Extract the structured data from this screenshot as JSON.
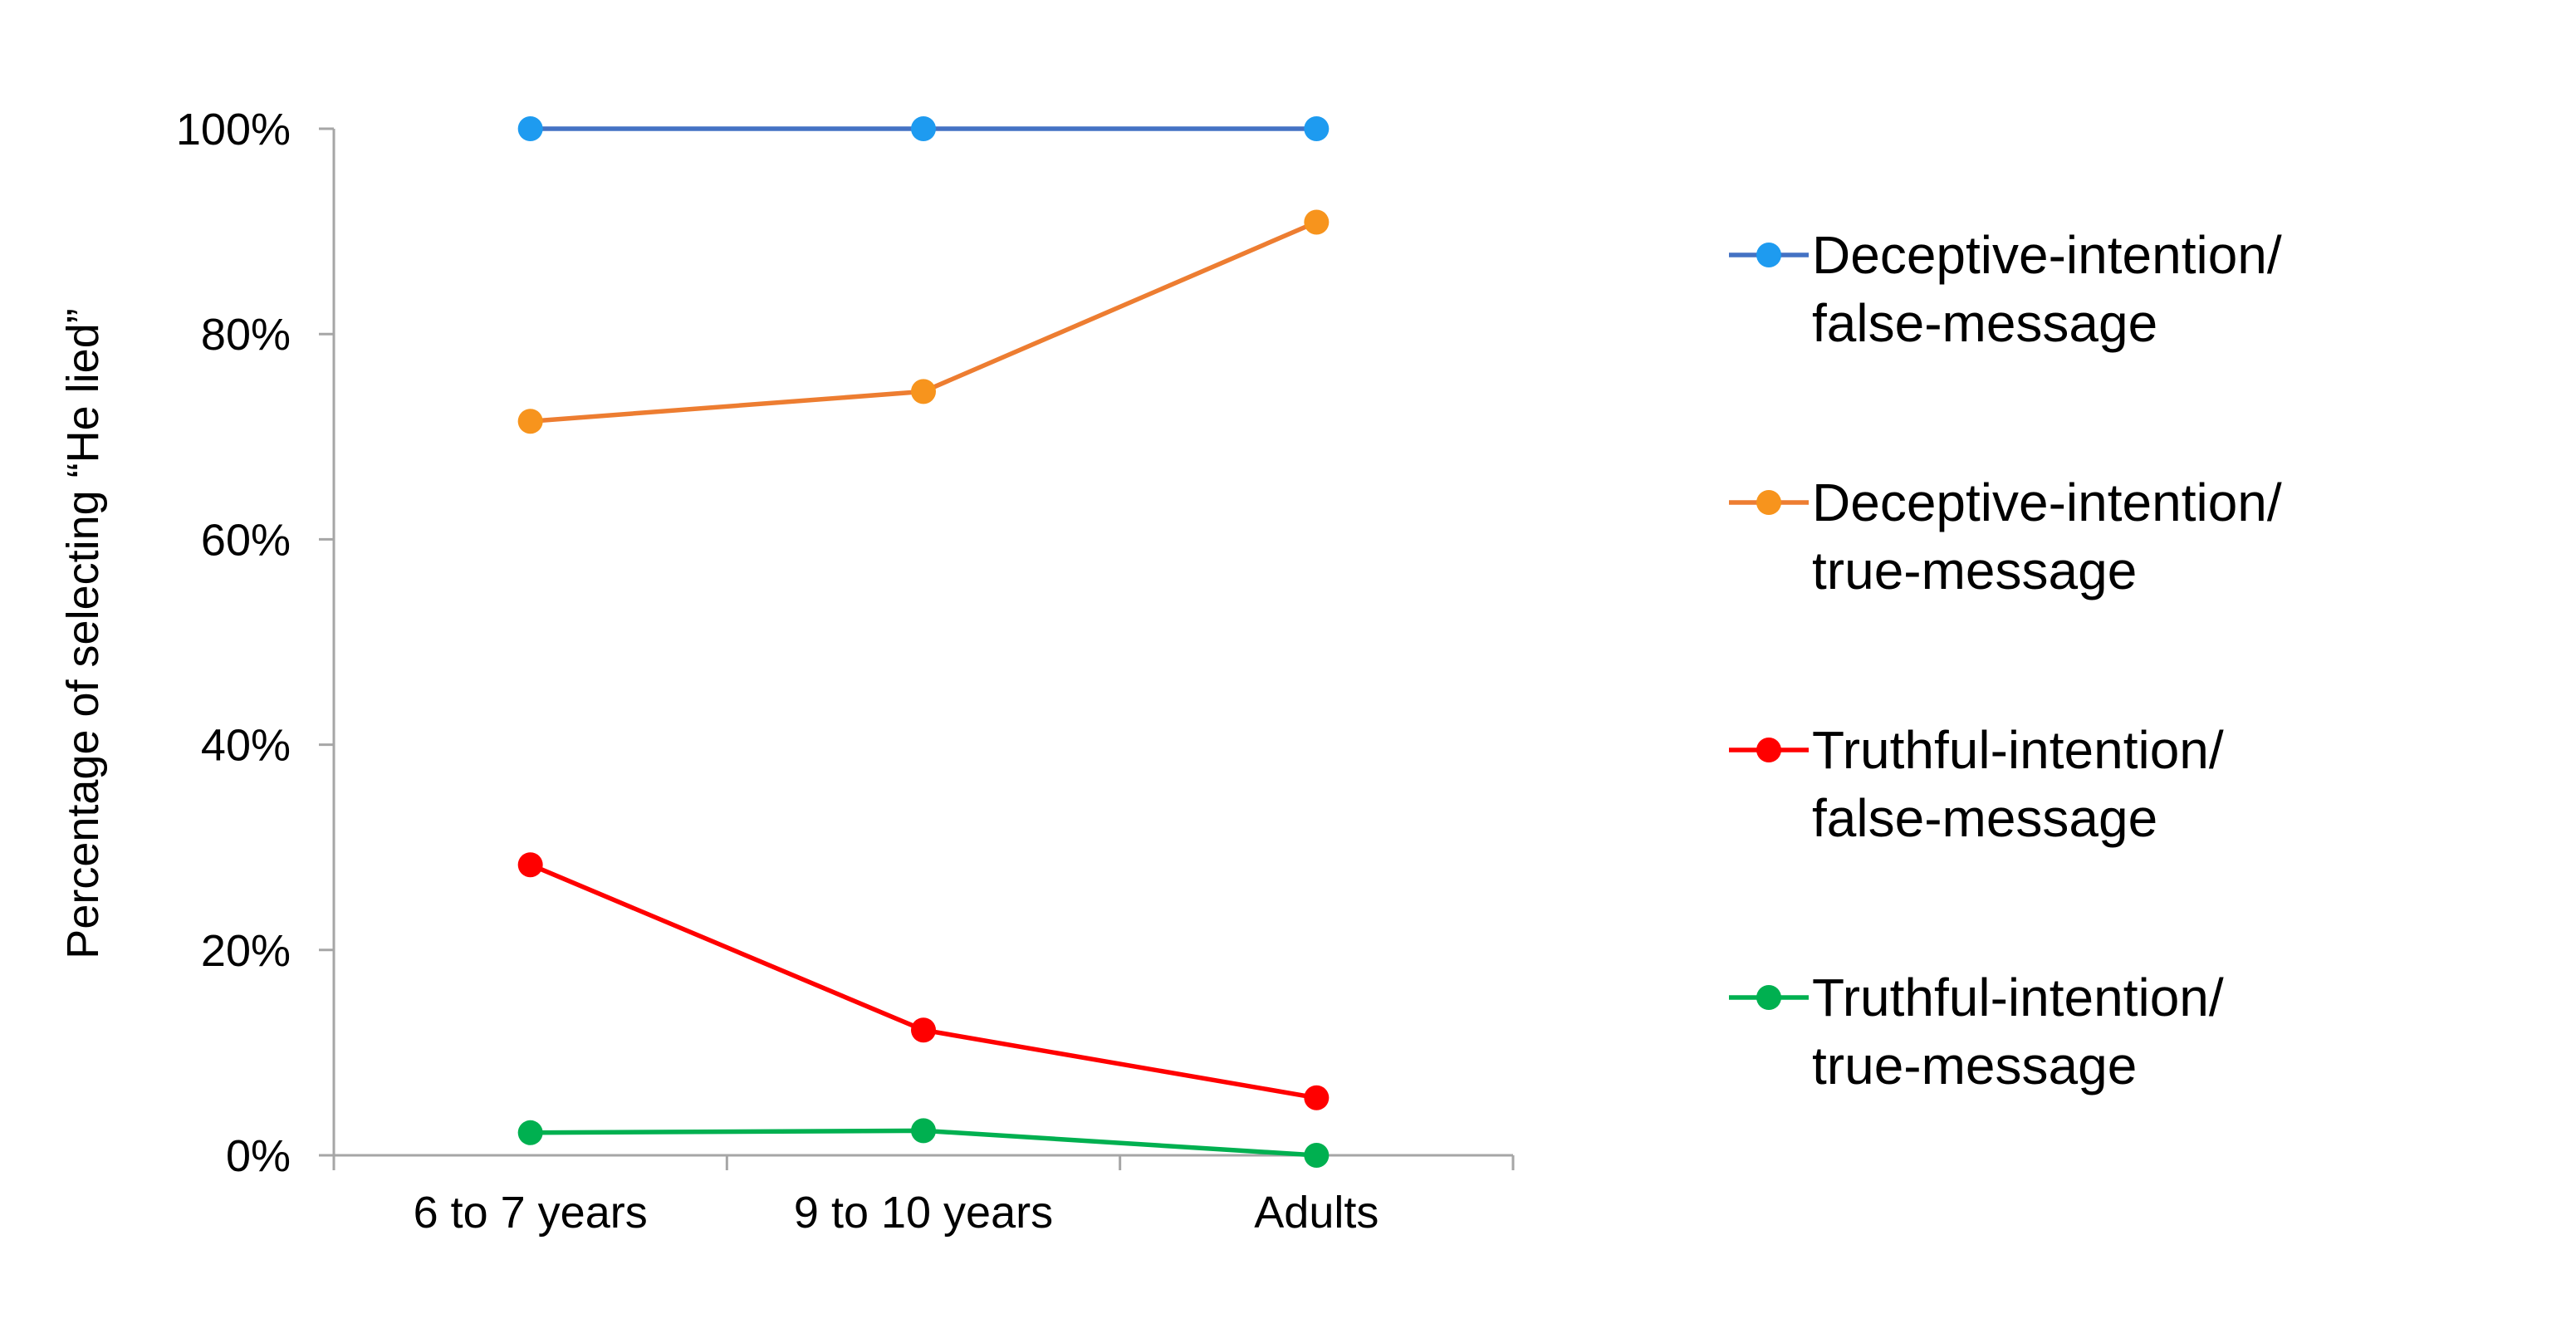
{
  "chart_data": {
    "type": "line",
    "title": "",
    "xlabel": "",
    "ylabel": "Percentage of selecting “He lied”",
    "categories": [
      "6 to 7 years",
      "9 to 10 years",
      "Adults"
    ],
    "ylim": [
      0,
      100
    ],
    "y_ticks": [
      "0%",
      "20%",
      "40%",
      "60%",
      "80%",
      "100%"
    ],
    "y_tick_values": [
      0,
      20,
      40,
      60,
      80,
      100
    ],
    "grid": false,
    "legend_position": "right",
    "series": [
      {
        "name_lines": [
          "Deceptive-intention/",
          "false-message"
        ],
        "values": [
          100,
          100,
          100
        ],
        "line_color": "#4472C4",
        "marker_color": "#1E9BF0"
      },
      {
        "name_lines": [
          "Deceptive-intention/",
          "true-message"
        ],
        "values": [
          71.5,
          74.4,
          90.9
        ],
        "line_color": "#ED7D31",
        "marker_color": "#F7941D"
      },
      {
        "name_lines": [
          "Truthful-intention/",
          "false-message"
        ],
        "values": [
          28.3,
          12.2,
          5.6
        ],
        "line_color": "#FF0000",
        "marker_color": "#FF0000"
      },
      {
        "name_lines": [
          "Truthful-intention/",
          "true-message"
        ],
        "values": [
          2.2,
          2.4,
          0
        ],
        "line_color": "#00B050",
        "marker_color": "#00B050"
      }
    ]
  }
}
